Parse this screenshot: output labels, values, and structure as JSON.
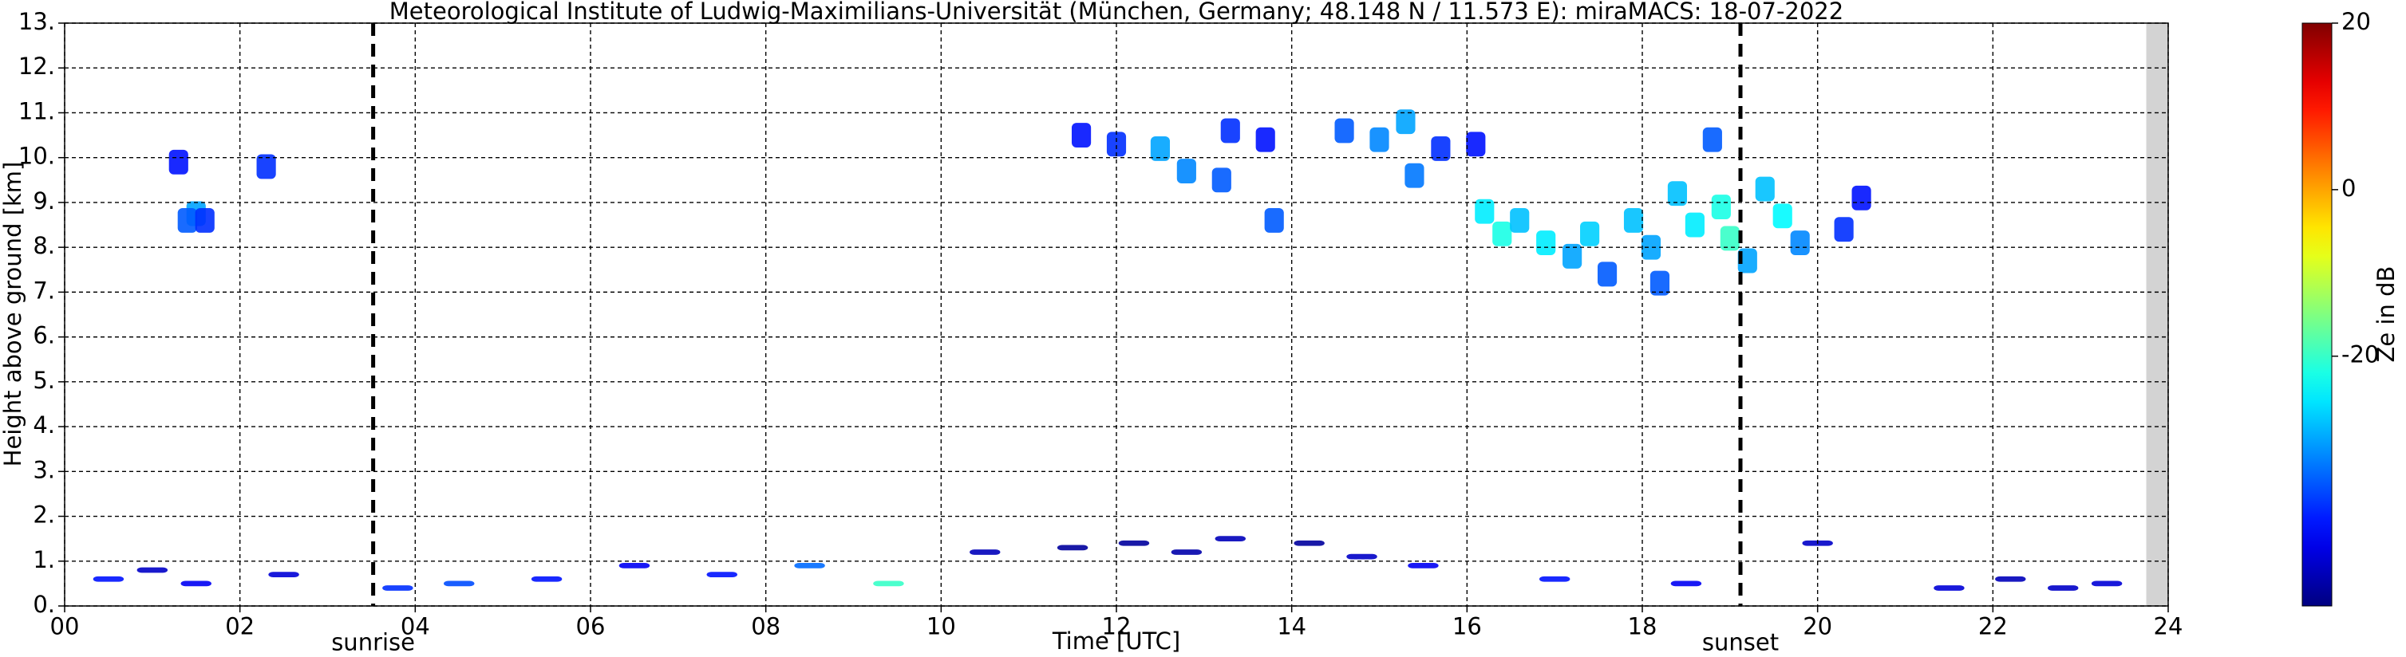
{
  "chart_data": {
    "type": "radar-heatmap",
    "title": "Meteorological Institute of Ludwig-Maximilians-Universität (München, Germany; 48.148 N / 11.573 E):    miraMACS: 18-07-2022",
    "xlabel": "Time [UTC]",
    "ylabel": "Height above ground [km]",
    "xlim": [
      0,
      24
    ],
    "ylim": [
      0,
      13
    ],
    "xticks": [
      {
        "value": 0,
        "label": "00"
      },
      {
        "value": 2,
        "label": "02"
      },
      {
        "value": 4,
        "label": "04"
      },
      {
        "value": 6,
        "label": "06"
      },
      {
        "value": 8,
        "label": "08"
      },
      10,
      12,
      14,
      16,
      18,
      20,
      22,
      24
    ],
    "yticks": [
      {
        "value": 0,
        "label": "0."
      },
      {
        "value": 1,
        "label": "1."
      },
      {
        "value": 2,
        "label": "2."
      },
      {
        "value": 3,
        "label": "3."
      },
      {
        "value": 4,
        "label": "4."
      },
      {
        "value": 5,
        "label": "5."
      },
      {
        "value": 6,
        "label": "6."
      },
      {
        "value": 7,
        "label": "7."
      },
      {
        "value": 8,
        "label": "8."
      },
      {
        "value": 9,
        "label": "9."
      },
      {
        "value": 10,
        "label": "10."
      },
      {
        "value": 11,
        "label": "11."
      },
      {
        "value": 12,
        "label": "12."
      },
      {
        "value": 13,
        "label": "13."
      }
    ],
    "grid": true,
    "no_data_xrange": [
      23.75,
      24
    ],
    "markers": [
      {
        "name": "sunrise",
        "x": 3.52
      },
      {
        "name": "sunset",
        "x": 19.12
      }
    ],
    "colorbar": {
      "label": "Ze in dB",
      "lim": [
        -50,
        20
      ],
      "ticks": [
        20,
        0,
        -20
      ],
      "colormap": "jet"
    },
    "echoes": {
      "x": [
        1.5,
        1.4,
        1.6,
        1.3,
        2.3,
        11.6,
        12,
        12.5,
        12.8,
        13.2,
        13.3,
        13.8,
        13.7,
        14.6,
        15,
        15.3,
        15.4,
        15.7,
        16.1,
        16.2,
        16.4,
        16.6,
        16.9,
        17.2,
        17.4,
        17.6,
        17.9,
        18.1,
        18.2,
        18.4,
        18.6,
        18.8,
        18.9,
        19,
        19.2,
        19.4,
        19.6,
        19.8,
        20.3,
        20.5,
        0.5,
        1,
        1.5,
        2.5,
        3.8,
        4.5,
        5.5,
        6.5,
        7.5,
        8.5,
        9.4,
        10.5,
        11.5,
        12.2,
        12.8,
        13.3,
        14.2,
        14.8,
        15.5,
        17,
        18.5,
        20,
        21.5,
        22.2,
        22.8,
        23.3
      ],
      "y": [
        8.75,
        8.6,
        8.6,
        9.9,
        9.8,
        10.5,
        10.3,
        10.2,
        9.7,
        9.5,
        10.6,
        8.6,
        10.4,
        10.6,
        10.4,
        10.8,
        9.6,
        10.2,
        10.3,
        8.8,
        8.3,
        8.6,
        8.1,
        7.8,
        8.3,
        7.4,
        8.6,
        8,
        7.2,
        9.2,
        8.5,
        10.4,
        8.9,
        8.2,
        7.7,
        9.3,
        8.7,
        8.1,
        8.4,
        9.1,
        0.6,
        0.8,
        0.5,
        0.7,
        0.4,
        0.5,
        0.6,
        0.9,
        0.7,
        0.9,
        0.5,
        1.2,
        1.3,
        1.4,
        1.2,
        1.5,
        1.4,
        1.1,
        0.9,
        0.6,
        0.5,
        1.4,
        0.4,
        0.6,
        0.4,
        0.5
      ],
      "values": [
        -30,
        -35,
        -38,
        -40,
        -38,
        -40,
        -38,
        -30,
        -32,
        -35,
        -38,
        -35,
        -40,
        -35,
        -32,
        -30,
        -33,
        -38,
        -40,
        -25,
        -22,
        -28,
        -25,
        -30,
        -27,
        -35,
        -28,
        -30,
        -35,
        -28,
        -25,
        -35,
        -22,
        -20,
        -30,
        -28,
        -24,
        -32,
        -38,
        -40,
        -40,
        -45,
        -42,
        -44,
        -38,
        -36,
        -40,
        -42,
        -40,
        -34,
        -20,
        -46,
        -48,
        -48,
        -47,
        -46,
        -48,
        -45,
        -42,
        -40,
        -42,
        -45,
        -44,
        -46,
        -45,
        -44
      ]
    }
  }
}
